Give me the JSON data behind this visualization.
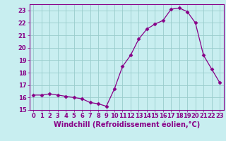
{
  "x": [
    0,
    1,
    2,
    3,
    4,
    5,
    6,
    7,
    8,
    9,
    10,
    11,
    12,
    13,
    14,
    15,
    16,
    17,
    18,
    19,
    20,
    21,
    22,
    23
  ],
  "y": [
    16.2,
    16.2,
    16.3,
    16.2,
    16.1,
    16.0,
    15.9,
    15.6,
    15.5,
    15.3,
    16.7,
    18.5,
    19.4,
    20.7,
    21.5,
    21.9,
    22.2,
    23.1,
    23.2,
    22.9,
    22.0,
    19.4,
    18.3,
    17.2
  ],
  "line_color": "#880088",
  "marker": "D",
  "marker_size": 2.5,
  "bg_color": "#c8eef0",
  "grid_color": "#99cccc",
  "xlabel": "Windchill (Refroidissement éolien,°C)",
  "xlabel_fontsize": 7,
  "xlim": [
    -0.5,
    23.5
  ],
  "ylim": [
    15,
    23.5
  ],
  "yticks": [
    15,
    16,
    17,
    18,
    19,
    20,
    21,
    22,
    23
  ],
  "xticks": [
    0,
    1,
    2,
    3,
    4,
    5,
    6,
    7,
    8,
    9,
    10,
    11,
    12,
    13,
    14,
    15,
    16,
    17,
    18,
    19,
    20,
    21,
    22,
    23
  ],
  "tick_fontsize": 6,
  "tick_color": "#880088",
  "spine_color": "#880088"
}
